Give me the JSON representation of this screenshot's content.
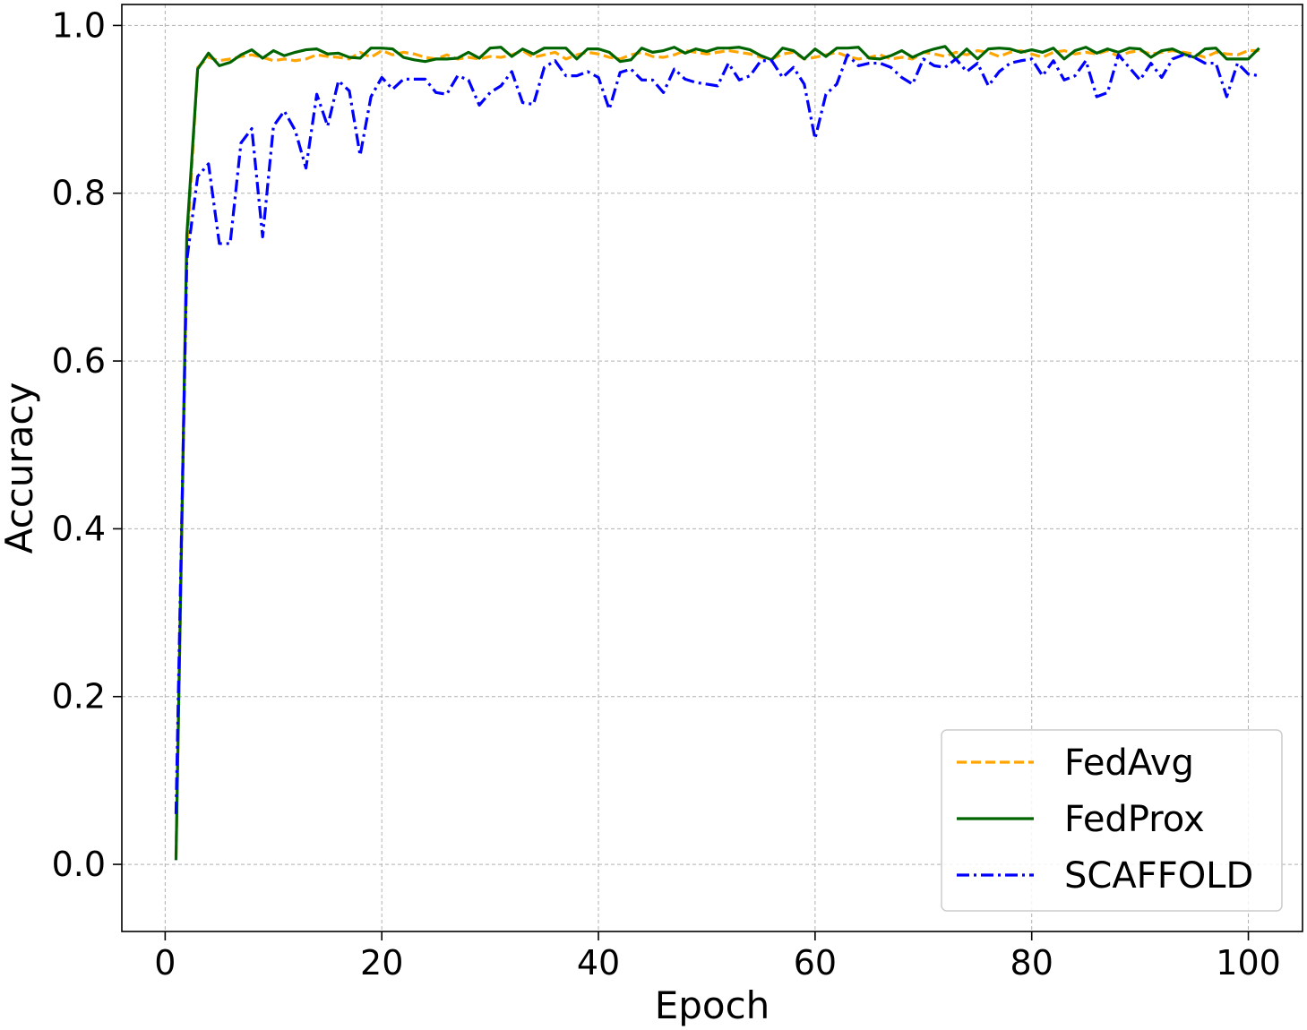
{
  "chart_data": {
    "type": "line",
    "xlabel": "Epoch",
    "ylabel": "Accuracy",
    "xlim": [
      -4,
      105
    ],
    "ylim": [
      -0.08,
      1.025
    ],
    "xticks": [
      0,
      20,
      40,
      60,
      80,
      100
    ],
    "yticks": [
      0.0,
      0.2,
      0.4,
      0.6,
      0.8,
      1.0
    ],
    "xtick_labels": [
      "0",
      "20",
      "40",
      "60",
      "80",
      "100"
    ],
    "ytick_labels": [
      "0.0",
      "0.2",
      "0.4",
      "0.6",
      "0.8",
      "1.0"
    ],
    "grid": true,
    "legend_position": "lower-right",
    "series": [
      {
        "name": "FedAvg",
        "color": "#ffa500",
        "dash": "dashed",
        "x_start": 1,
        "values": [
          0.01,
          0.73,
          0.95,
          0.962,
          0.958,
          0.96,
          0.963,
          0.965,
          0.962,
          0.958,
          0.96,
          0.958,
          0.96,
          0.965,
          0.963,
          0.962,
          0.96,
          0.968,
          0.962,
          0.97,
          0.965,
          0.968,
          0.966,
          0.962,
          0.96,
          0.965,
          0.96,
          0.962,
          0.96,
          0.963,
          0.962,
          0.965,
          0.97,
          0.962,
          0.965,
          0.968,
          0.96,
          0.965,
          0.968,
          0.966,
          0.962,
          0.96,
          0.965,
          0.968,
          0.963,
          0.962,
          0.965,
          0.97,
          0.968,
          0.966,
          0.968,
          0.97,
          0.968,
          0.966,
          0.962,
          0.96,
          0.966,
          0.968,
          0.96,
          0.962,
          0.965,
          0.968,
          0.963,
          0.96,
          0.962,
          0.965,
          0.96,
          0.962,
          0.96,
          0.968,
          0.966,
          0.963,
          0.968,
          0.965,
          0.97,
          0.968,
          0.963,
          0.968,
          0.97,
          0.966,
          0.962,
          0.968,
          0.97,
          0.966,
          0.968,
          0.966,
          0.97,
          0.963,
          0.968,
          0.97,
          0.966,
          0.968,
          0.97,
          0.968,
          0.966,
          0.962,
          0.968,
          0.966,
          0.965,
          0.97,
          0.97
        ]
      },
      {
        "name": "FedProx",
        "color": "#006400",
        "dash": "solid",
        "x_start": 1,
        "values": [
          0.005,
          0.75,
          0.948,
          0.967,
          0.952,
          0.956,
          0.965,
          0.971,
          0.961,
          0.97,
          0.964,
          0.968,
          0.971,
          0.972,
          0.966,
          0.967,
          0.962,
          0.961,
          0.973,
          0.973,
          0.972,
          0.962,
          0.959,
          0.957,
          0.96,
          0.96,
          0.961,
          0.968,
          0.961,
          0.973,
          0.974,
          0.963,
          0.972,
          0.966,
          0.973,
          0.973,
          0.973,
          0.96,
          0.972,
          0.972,
          0.968,
          0.957,
          0.959,
          0.973,
          0.968,
          0.97,
          0.974,
          0.967,
          0.972,
          0.969,
          0.973,
          0.973,
          0.974,
          0.971,
          0.964,
          0.959,
          0.973,
          0.97,
          0.96,
          0.972,
          0.963,
          0.973,
          0.973,
          0.974,
          0.961,
          0.96,
          0.964,
          0.97,
          0.962,
          0.968,
          0.972,
          0.975,
          0.96,
          0.972,
          0.96,
          0.972,
          0.973,
          0.972,
          0.968,
          0.971,
          0.968,
          0.973,
          0.96,
          0.97,
          0.974,
          0.967,
          0.972,
          0.968,
          0.973,
          0.972,
          0.962,
          0.97,
          0.972,
          0.966,
          0.962,
          0.972,
          0.973,
          0.96,
          0.96,
          0.96,
          0.973
        ]
      },
      {
        "name": "SCAFFOLD",
        "color": "#0000ff",
        "dash": "dashdot",
        "x_start": 1,
        "values": [
          0.06,
          0.72,
          0.82,
          0.835,
          0.74,
          0.74,
          0.86,
          0.877,
          0.748,
          0.88,
          0.898,
          0.875,
          0.83,
          0.918,
          0.88,
          0.934,
          0.922,
          0.845,
          0.915,
          0.938,
          0.924,
          0.936,
          0.936,
          0.936,
          0.92,
          0.918,
          0.94,
          0.935,
          0.905,
          0.92,
          0.928,
          0.945,
          0.908,
          0.906,
          0.95,
          0.958,
          0.94,
          0.94,
          0.945,
          0.938,
          0.9,
          0.944,
          0.948,
          0.935,
          0.935,
          0.92,
          0.948,
          0.936,
          0.932,
          0.93,
          0.928,
          0.955,
          0.935,
          0.94,
          0.958,
          0.958,
          0.938,
          0.95,
          0.93,
          0.865,
          0.918,
          0.93,
          0.965,
          0.952,
          0.955,
          0.955,
          0.95,
          0.938,
          0.93,
          0.96,
          0.952,
          0.95,
          0.96,
          0.945,
          0.955,
          0.928,
          0.945,
          0.955,
          0.958,
          0.96,
          0.94,
          0.958,
          0.935,
          0.94,
          0.958,
          0.915,
          0.92,
          0.965,
          0.95,
          0.935,
          0.955,
          0.938,
          0.96,
          0.965,
          0.962,
          0.955,
          0.955,
          0.915,
          0.955,
          0.942,
          0.94
        ]
      }
    ]
  }
}
